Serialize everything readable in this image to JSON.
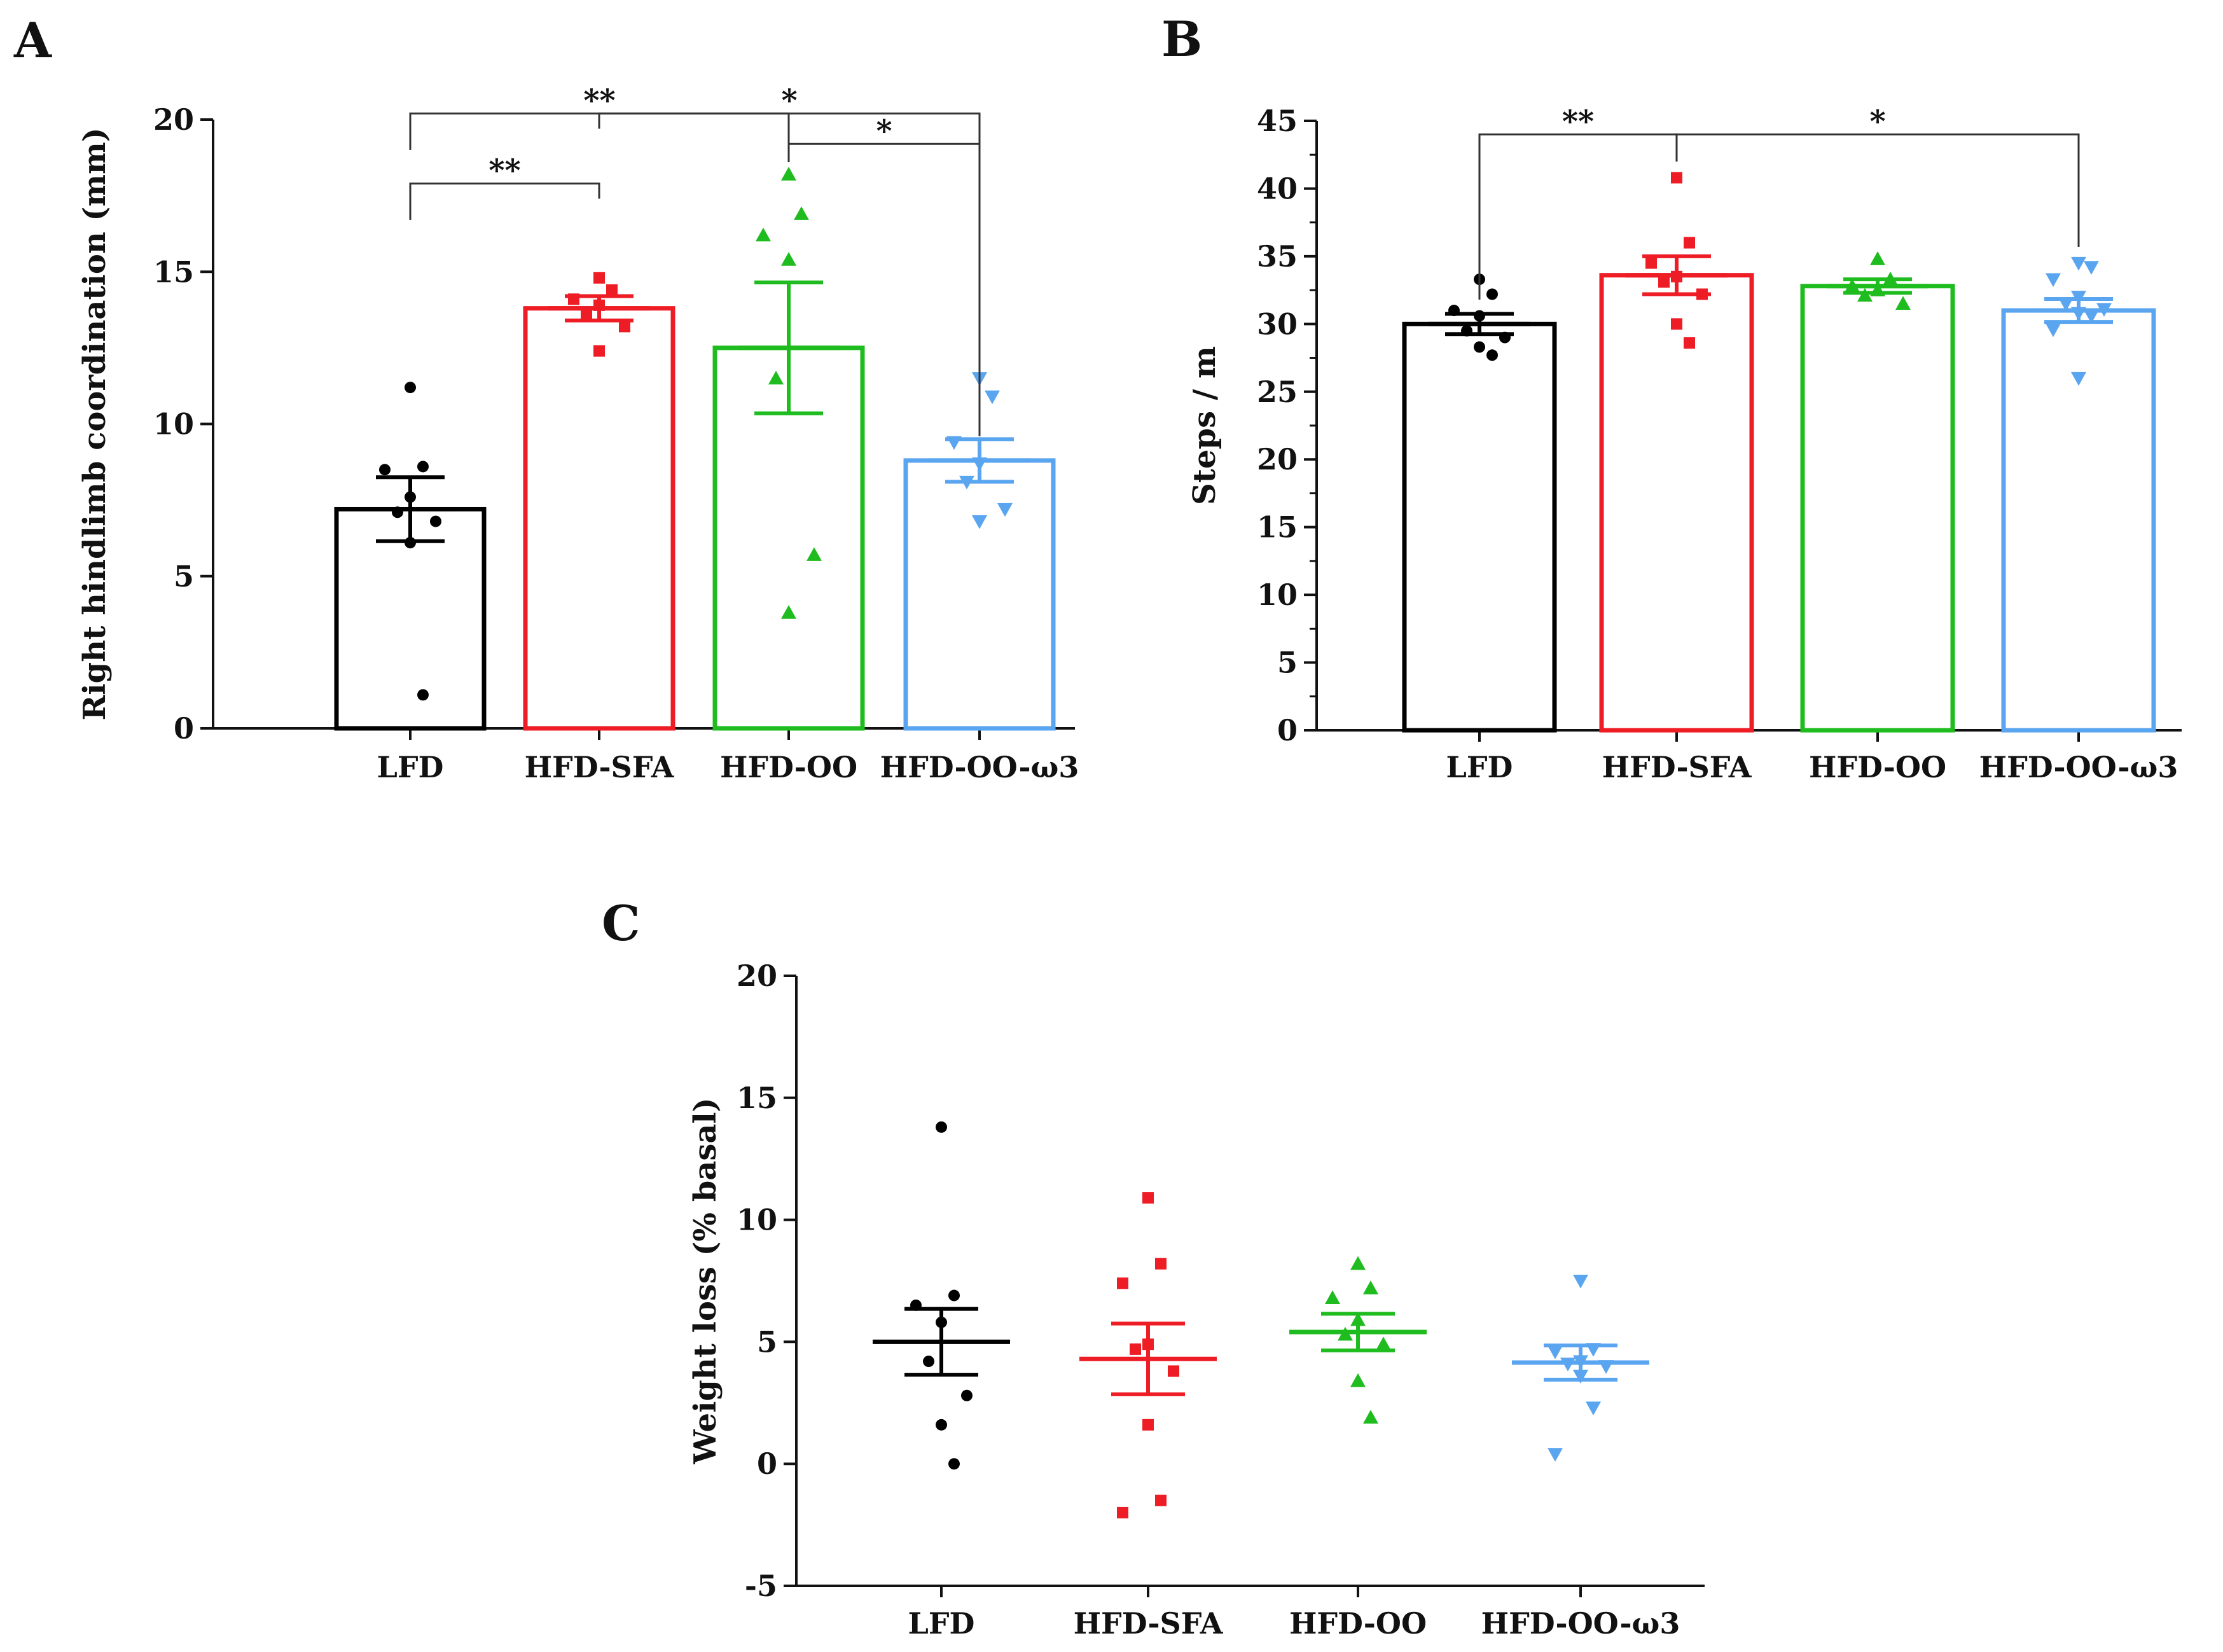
{
  "chart_data": [
    {
      "id": "A",
      "panel_label": "A",
      "type": "bar",
      "categories": [
        "LFD",
        "HFD-SFA",
        "HFD-OO",
        "HFD-OO-ω3"
      ],
      "ylabel": "Right hindlimb coordination (mm)",
      "ylim": [
        0,
        20
      ],
      "yticks": [
        0,
        5,
        10,
        15,
        20
      ],
      "minor_ticks": false,
      "series": [
        {
          "name": "LFD",
          "color": "#000000",
          "marker": "circle",
          "mean": 7.2,
          "sem": 1.05,
          "points": [
            11.2,
            8.6,
            8.5,
            7.6,
            7.1,
            6.8,
            6.1,
            1.1
          ]
        },
        {
          "name": "HFD-SFA",
          "color": "#ee1c25",
          "marker": "square",
          "mean": 13.8,
          "sem": 0.4,
          "points": [
            14.8,
            14.4,
            14.1,
            13.9,
            13.6,
            13.2,
            12.4
          ]
        },
        {
          "name": "HFD-OO",
          "color": "#1fbc1f",
          "marker": "triangle-up",
          "mean": 12.5,
          "sem": 2.15,
          "points": [
            18.2,
            16.9,
            16.2,
            15.4,
            11.5,
            5.7,
            3.8
          ]
        },
        {
          "name": "HFD-OO-ω3",
          "color": "#5aa5f0",
          "marker": "triangle-down",
          "mean": 8.8,
          "sem": 0.7,
          "points": [
            11.5,
            10.9,
            9.4,
            8.7,
            8.1,
            7.2,
            6.8
          ]
        }
      ],
      "significance": [
        {
          "from": 0,
          "to": 2,
          "label": "**",
          "level": 20.2
        },
        {
          "from": 1,
          "to": 3,
          "label": "*",
          "level": 20.2,
          "left_drop": 19.7,
          "right_drop": 9.6
        },
        {
          "from": 2,
          "to": 3,
          "label": "*",
          "level": 19.2,
          "left_drop": 18.6,
          "right_drop": 9.6
        },
        {
          "from": 0,
          "to": 1,
          "label": "**",
          "level": 17.9,
          "right_drop": 17.4
        }
      ]
    },
    {
      "id": "B",
      "panel_label": "B",
      "type": "bar",
      "categories": [
        "LFD",
        "HFD-SFA",
        "HFD-OO",
        "HFD-OO-ω3"
      ],
      "ylabel": "Steps / m",
      "ylim": [
        0,
        45
      ],
      "yticks": [
        0,
        5,
        10,
        15,
        20,
        25,
        30,
        35,
        40,
        45
      ],
      "minor_ticks": true,
      "series": [
        {
          "name": "LFD",
          "color": "#000000",
          "marker": "circle",
          "mean": 30.0,
          "sem": 0.75,
          "points": [
            33.3,
            32.2,
            31.0,
            30.6,
            29.5,
            29.0,
            28.3,
            27.7
          ]
        },
        {
          "name": "HFD-SFA",
          "color": "#ee1c25",
          "marker": "square",
          "mean": 33.6,
          "sem": 1.4,
          "points": [
            40.8,
            36.0,
            34.5,
            33.5,
            33.1,
            32.2,
            30.0,
            28.6
          ]
        },
        {
          "name": "HFD-OO",
          "color": "#1fbc1f",
          "marker": "triangle-up",
          "mean": 32.8,
          "sem": 0.5,
          "points": [
            34.8,
            33.3,
            32.8,
            32.5,
            32.1,
            31.5
          ]
        },
        {
          "name": "HFD-OO-ω3",
          "color": "#5aa5f0",
          "marker": "triangle-down",
          "mean": 31.0,
          "sem": 0.85,
          "points": [
            34.5,
            34.2,
            33.3,
            32.0,
            31.5,
            31.1,
            30.8,
            30.6,
            29.6,
            26.0
          ]
        }
      ],
      "significance": [
        {
          "from": 0,
          "to": 1,
          "label": "**",
          "level": 44.0,
          "left_drop": 31.8,
          "right_drop": 42.0
        },
        {
          "from": 1,
          "to": 3,
          "label": "*",
          "level": 44.0,
          "left_drop": 42.0,
          "right_drop": 35.7
        }
      ]
    },
    {
      "id": "C",
      "panel_label": "C",
      "type": "scatter",
      "categories": [
        "LFD",
        "HFD-SFA",
        "HFD-OO",
        "HFD-OO-ω3"
      ],
      "ylabel": "Weight loss (% basal)",
      "ylim": [
        -5,
        20
      ],
      "yticks": [
        -5,
        0,
        5,
        10,
        15,
        20
      ],
      "minor_ticks": false,
      "series": [
        {
          "name": "LFD",
          "color": "#000000",
          "marker": "circle",
          "mean": 5.0,
          "sem": 1.35,
          "points": [
            13.8,
            6.9,
            6.5,
            5.8,
            4.2,
            2.8,
            1.6,
            0.0
          ]
        },
        {
          "name": "HFD-SFA",
          "color": "#ee1c25",
          "marker": "square",
          "mean": 4.3,
          "sem": 1.45,
          "points": [
            10.9,
            8.2,
            7.4,
            4.9,
            4.7,
            3.8,
            1.6,
            -1.5,
            -2.0
          ]
        },
        {
          "name": "HFD-OO",
          "color": "#1fbc1f",
          "marker": "triangle-up",
          "mean": 5.4,
          "sem": 0.75,
          "points": [
            8.2,
            7.2,
            6.8,
            5.9,
            5.3,
            4.9,
            3.4,
            1.9
          ]
        },
        {
          "name": "HFD-OO-ω3",
          "color": "#5aa5f0",
          "marker": "triangle-down",
          "mean": 4.15,
          "sem": 0.7,
          "points": [
            7.5,
            4.7,
            4.6,
            4.2,
            4.1,
            4.0,
            3.6,
            2.3,
            0.4
          ]
        }
      ],
      "significance": []
    }
  ]
}
